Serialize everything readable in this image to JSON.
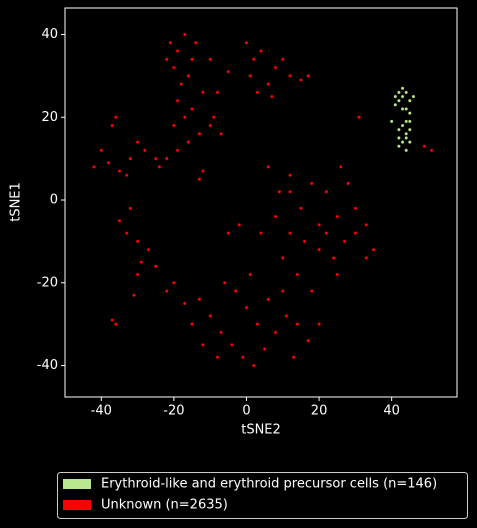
{
  "chart_data": {
    "type": "scatter",
    "xlabel": "tSNE2",
    "ylabel": "tSNE1",
    "xlim": [
      -50,
      58
    ],
    "ylim": [
      -47.6,
      46.4
    ],
    "xticks": [
      -40,
      -20,
      0,
      20,
      40
    ],
    "yticks": [
      -40,
      -20,
      0,
      20,
      40
    ],
    "legend": "below",
    "series": [
      {
        "name": "Erythroid-like and erythroid precursor cells (n=146)",
        "color": "#b9e88f",
        "x": [
          42,
          43,
          44,
          45,
          42,
          43,
          44,
          45,
          41,
          44,
          43,
          45,
          44,
          42,
          43,
          45,
          44,
          42,
          45,
          40,
          43,
          41,
          46,
          42,
          44
        ],
        "y": [
          26,
          25,
          26,
          24,
          24,
          22,
          22,
          21,
          25,
          19,
          18,
          17,
          16,
          15,
          14,
          14,
          12,
          17,
          19,
          19,
          27,
          23,
          25,
          13,
          15
        ]
      },
      {
        "name": "Unknown (n=2635)",
        "color": "#ff0000",
        "x": [
          -21,
          -19,
          -17,
          -15,
          -20,
          -18,
          -16,
          -14,
          -22,
          -19,
          -17,
          -15,
          -20,
          -13,
          -16,
          -19,
          -22,
          -24,
          -12,
          -8,
          -9,
          -7,
          -10,
          -5,
          -10,
          -40,
          -38,
          -35,
          -32,
          -30,
          -42,
          -28,
          -36,
          -37,
          -33,
          -12,
          -13,
          0,
          2,
          4,
          1,
          6,
          3,
          8,
          10,
          12,
          15,
          17,
          7,
          -25,
          -35,
          -33,
          -30,
          -27,
          -32,
          -29,
          -36,
          -37,
          -31,
          -30,
          31,
          49,
          51,
          6,
          9,
          12,
          15,
          18,
          20,
          22,
          25,
          27,
          30,
          33,
          35,
          28,
          24,
          20,
          16,
          12,
          8,
          4,
          10,
          14,
          18,
          25,
          30,
          33,
          -2,
          -5,
          -20,
          -22,
          -17,
          -13,
          -10,
          -7,
          -4,
          -1,
          2,
          5,
          8,
          11,
          14,
          17,
          3,
          0,
          -3,
          6,
          10,
          -15,
          -12,
          -8,
          -25,
          13,
          20,
          -6,
          1,
          22,
          12,
          26
        ],
        "y": [
          38,
          36,
          40,
          34,
          32,
          28,
          30,
          38,
          34,
          24,
          20,
          22,
          18,
          16,
          14,
          12,
          10,
          8,
          26,
          26,
          20,
          16,
          18,
          31,
          34,
          12,
          9,
          7,
          10,
          14,
          8,
          12,
          20,
          18,
          6,
          7,
          5,
          38,
          34,
          36,
          30,
          28,
          26,
          32,
          34,
          30,
          29,
          30,
          25,
          10,
          -5,
          -8,
          -10,
          -12,
          -2,
          -15,
          -30,
          -29,
          -23,
          -18,
          20,
          13,
          12,
          8,
          2,
          6,
          -2,
          4,
          -6,
          2,
          -4,
          -10,
          -8,
          -6,
          -12,
          4,
          -14,
          -12,
          -10,
          -8,
          -4,
          -8,
          -14,
          -18,
          -22,
          -18,
          -2,
          -14,
          -6,
          -8,
          -20,
          -22,
          -25,
          -24,
          -28,
          -32,
          -35,
          -38,
          -40,
          -36,
          -32,
          -28,
          -30,
          -34,
          -30,
          -26,
          -22,
          -24,
          -22,
          -30,
          -35,
          -38,
          -16,
          -38,
          -30,
          -20,
          -18,
          -8,
          2,
          8
        ]
      }
    ]
  }
}
